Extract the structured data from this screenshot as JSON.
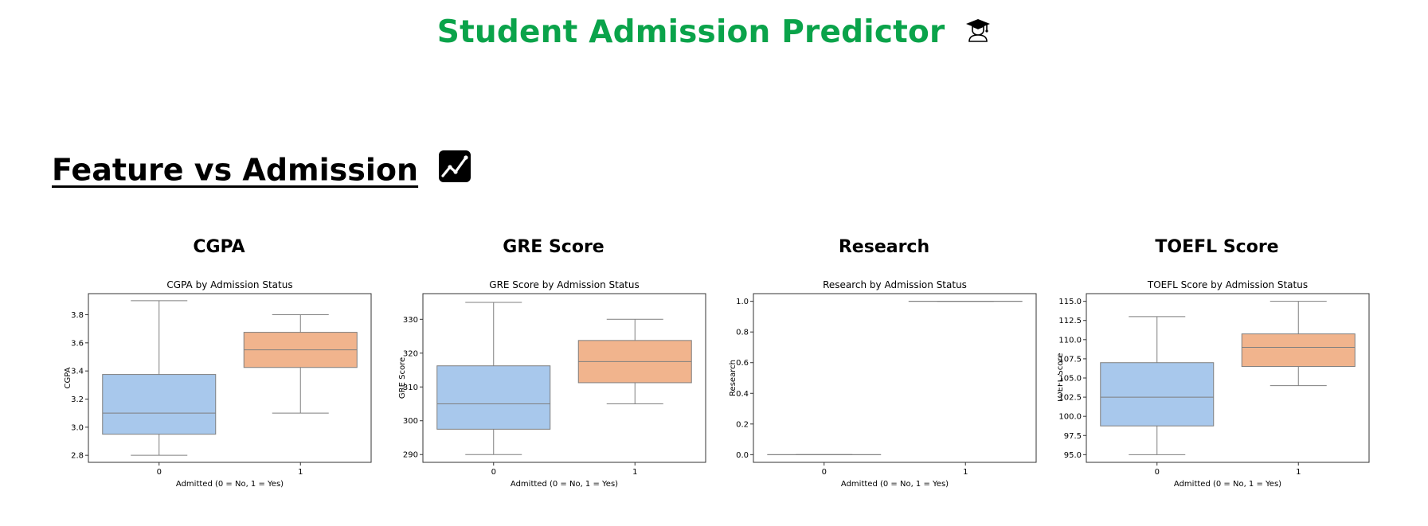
{
  "app": {
    "title": "Student Admission Predictor",
    "title_icon": "graduation-cap-icon",
    "title_color": "#0aa34a"
  },
  "section": {
    "heading": "Feature vs Admission",
    "heading_icon": "chart-increasing-icon"
  },
  "chart_data": [
    {
      "type": "box",
      "panel_title": "CGPA",
      "title": "CGPA by Admission Status",
      "xlabel": "Admitted (0 = No, 1 = Yes)",
      "ylabel": "CGPA",
      "categories": [
        "0",
        "1"
      ],
      "ylim": [
        2.75,
        3.95
      ],
      "yticks": [
        2.8,
        3.0,
        3.2,
        3.4,
        3.6,
        3.8
      ],
      "yticklabels": [
        "2.8",
        "3.0",
        "3.2",
        "3.4",
        "3.6",
        "3.8"
      ],
      "boxes": [
        {
          "category": "0",
          "whislo": 2.8,
          "q1": 2.95,
          "med": 3.1,
          "q3": 3.375,
          "whishi": 3.9,
          "color": "#a8c8ec"
        },
        {
          "category": "1",
          "whislo": 3.1,
          "q1": 3.425,
          "med": 3.55,
          "q3": 3.675,
          "whishi": 3.8,
          "color": "#f1b48d"
        }
      ]
    },
    {
      "type": "box",
      "panel_title": "GRE Score",
      "title": "GRE Score by Admission Status",
      "xlabel": "Admitted (0 = No, 1 = Yes)",
      "ylabel": "GRE Score",
      "categories": [
        "0",
        "1"
      ],
      "ylim": [
        287.7,
        337.6
      ],
      "yticks": [
        290,
        300,
        310,
        320,
        330
      ],
      "yticklabels": [
        "290",
        "300",
        "310",
        "320",
        "330"
      ],
      "boxes": [
        {
          "category": "0",
          "whislo": 290,
          "q1": 297.5,
          "med": 305,
          "q3": 316.25,
          "whishi": 335,
          "color": "#a8c8ec"
        },
        {
          "category": "1",
          "whislo": 305,
          "q1": 311.25,
          "med": 317.5,
          "q3": 323.75,
          "whishi": 330,
          "color": "#f1b48d"
        }
      ]
    },
    {
      "type": "box",
      "panel_title": "Research",
      "title": "Research by Admission Status",
      "xlabel": "Admitted (0 = No, 1 = Yes)",
      "ylabel": "Research",
      "categories": [
        "0",
        "1"
      ],
      "ylim": [
        -0.05,
        1.05
      ],
      "yticks": [
        0.0,
        0.2,
        0.4,
        0.6,
        0.8,
        1.0
      ],
      "yticklabels": [
        "0.0",
        "0.2",
        "0.4",
        "0.6",
        "0.8",
        "1.0"
      ],
      "boxes": [
        {
          "category": "0",
          "whislo": 0,
          "q1": 0,
          "med": 0,
          "q3": 0,
          "whishi": 0,
          "color": "#a8c8ec"
        },
        {
          "category": "1",
          "whislo": 1,
          "q1": 1,
          "med": 1,
          "q3": 1,
          "whishi": 1,
          "color": "#f1b48d"
        }
      ]
    },
    {
      "type": "box",
      "panel_title": "TOEFL Score",
      "title": "TOEFL Score by Admission Status",
      "xlabel": "Admitted (0 = No, 1 = Yes)",
      "ylabel": "TOEFL Score",
      "categories": [
        "0",
        "1"
      ],
      "ylim": [
        94.0,
        116.0
      ],
      "yticks": [
        95.0,
        97.5,
        100.0,
        102.5,
        105.0,
        107.5,
        110.0,
        112.5,
        115.0
      ],
      "yticklabels": [
        "95.0",
        "97.5",
        "100.0",
        "102.5",
        "105.0",
        "107.5",
        "110.0",
        "112.5",
        "115.0"
      ],
      "boxes": [
        {
          "category": "0",
          "whislo": 95,
          "q1": 98.75,
          "med": 102.5,
          "q3": 107,
          "whishi": 113,
          "color": "#a8c8ec"
        },
        {
          "category": "1",
          "whislo": 104,
          "q1": 106.5,
          "med": 109,
          "q3": 110.75,
          "whishi": 115,
          "color": "#f1b48d"
        }
      ]
    }
  ]
}
